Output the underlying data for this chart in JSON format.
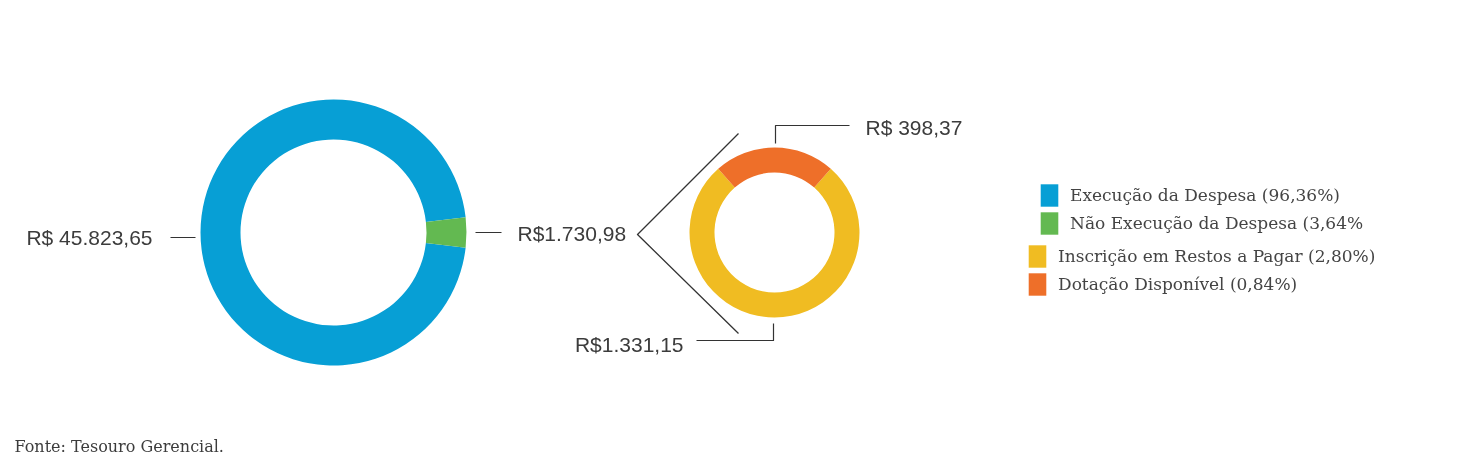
{
  "chart_data": [
    {
      "type": "donut",
      "categories": [
        "Execução da Despesa (96,36%)",
        "Não Execução da Despesa (3,64%"
      ],
      "values": [
        45823.65,
        1730.98
      ],
      "colors": [
        "#079fd5",
        "#63b951"
      ],
      "value_labels": [
        "R$ 45.823,65",
        "R$1.730,98"
      ],
      "legend": "right"
    },
    {
      "type": "donut",
      "categories": [
        "Inscrição em Restos a Pagar (2,80%)",
        "Dotação Disponível (0,84%)"
      ],
      "values": [
        1331.15,
        398.37
      ],
      "colors": [
        "#f0bc22",
        "#ee6f29"
      ],
      "value_labels": [
        "R$1.331,15",
        "R$ 398,37"
      ],
      "legend": "right",
      "annotations": [
        "Fonte: Tesouro Gerencial."
      ]
    }
  ]
}
